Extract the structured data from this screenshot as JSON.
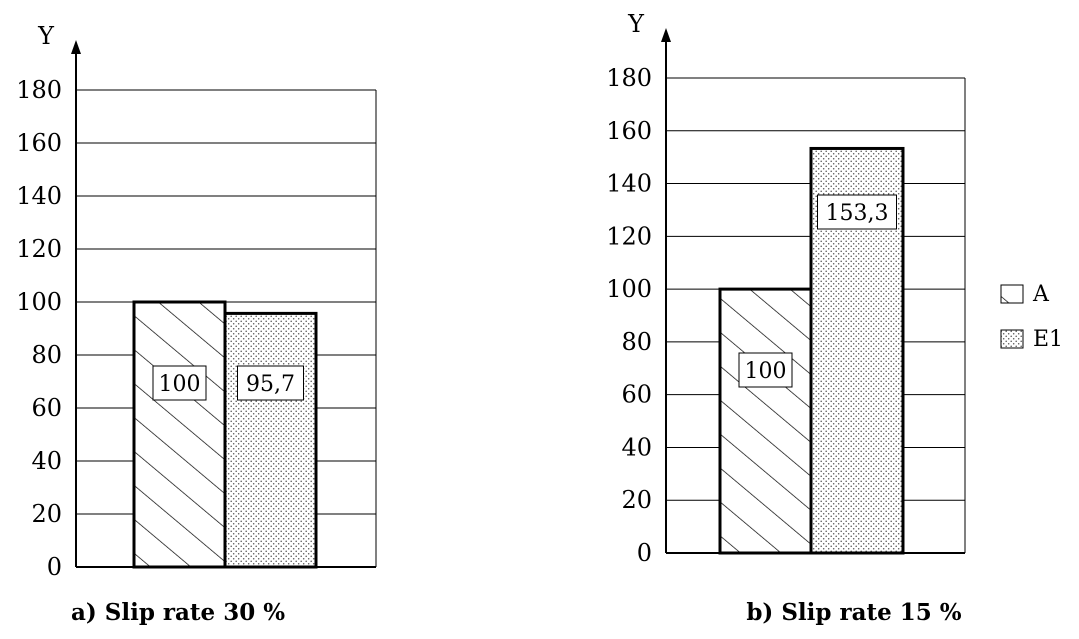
{
  "chart_data": [
    {
      "type": "bar",
      "title": "a) Slip rate 30 %",
      "ylabel": "Y",
      "xlabel": "",
      "ylim": [
        0,
        180
      ],
      "yticks": [
        0,
        20,
        40,
        60,
        80,
        100,
        120,
        140,
        160,
        180
      ],
      "categories": [
        "A",
        "E1"
      ],
      "values": [
        100,
        95.7
      ],
      "data_labels": [
        "100",
        "95,7"
      ],
      "grid": true
    },
    {
      "type": "bar",
      "title": "b) Slip rate 15 %",
      "ylabel": "Y",
      "xlabel": "",
      "ylim": [
        0,
        180
      ],
      "yticks": [
        0,
        20,
        40,
        60,
        80,
        100,
        120,
        140,
        160,
        180
      ],
      "categories": [
        "A",
        "E1"
      ],
      "values": [
        100,
        153.3
      ],
      "data_labels": [
        "100",
        "153,3"
      ],
      "grid": true
    }
  ],
  "legend": {
    "position": "right",
    "items": [
      {
        "label": "A",
        "pattern": "hatch"
      },
      {
        "label": "E1",
        "pattern": "dots"
      }
    ]
  }
}
